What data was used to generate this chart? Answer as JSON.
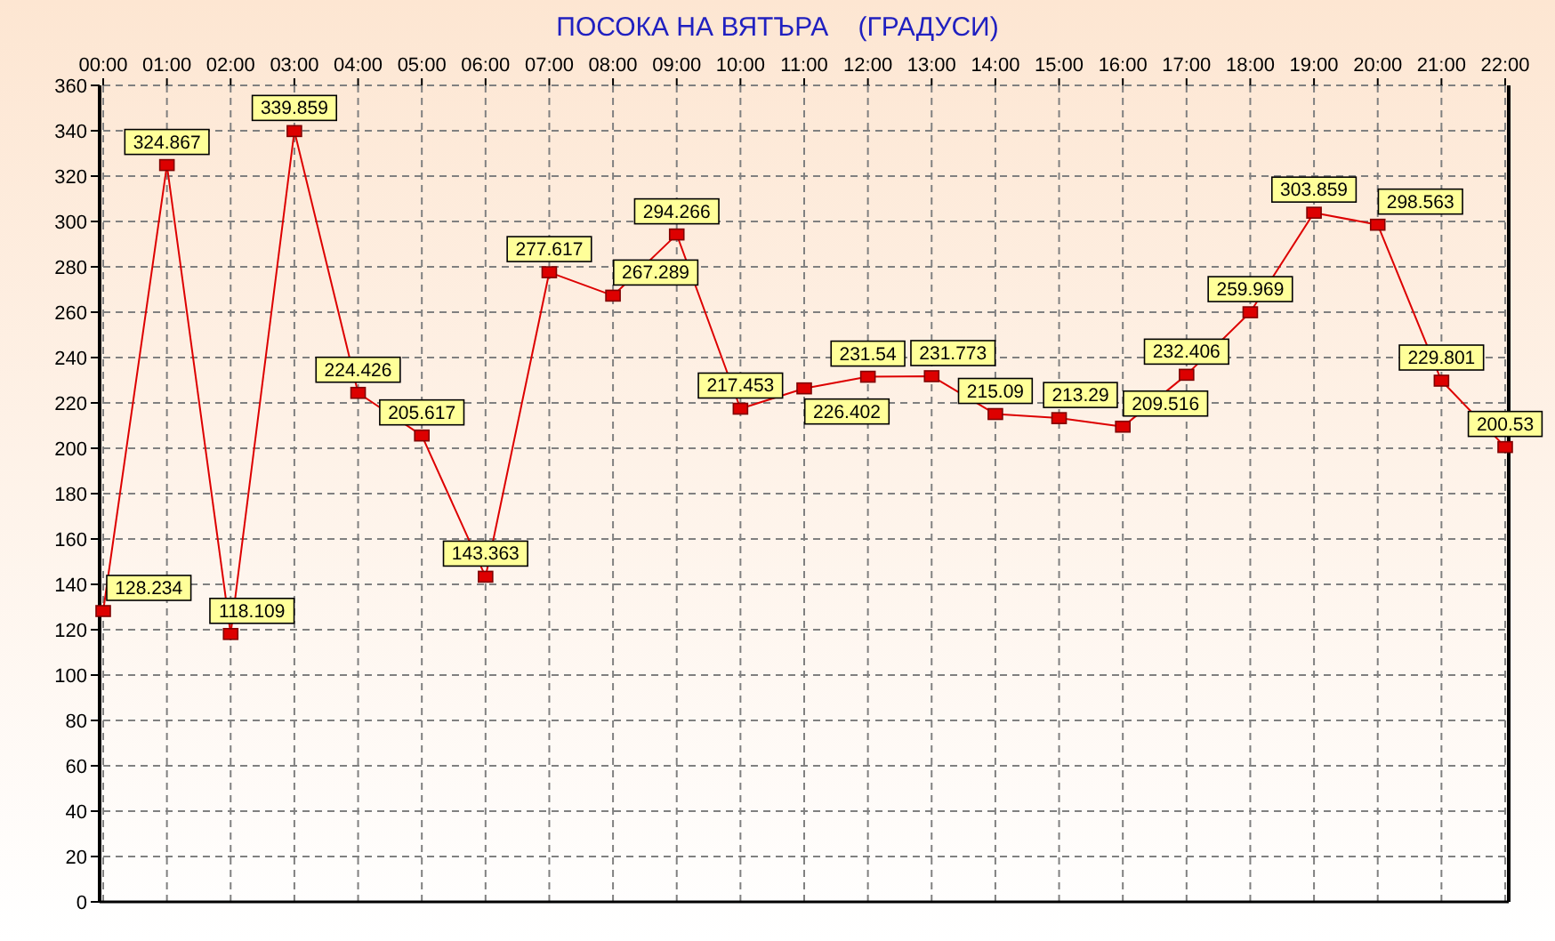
{
  "chart_data": {
    "type": "line",
    "title": "ПОСОКА НА ВЯТЪРА    (ГРАДУСИ)",
    "categories": [
      "00:00",
      "01:00",
      "02:00",
      "03:00",
      "04:00",
      "05:00",
      "06:00",
      "07:00",
      "08:00",
      "09:00",
      "10:00",
      "11:00",
      "12:00",
      "13:00",
      "14:00",
      "15:00",
      "16:00",
      "17:00",
      "18:00",
      "19:00",
      "20:00",
      "21:00",
      "22:00"
    ],
    "series": [
      {
        "color": "#dd0000",
        "values": [
          128.234,
          324.867,
          118.109,
          339.859,
          224.426,
          205.617,
          143.363,
          277.617,
          267.289,
          294.266,
          217.453,
          226.402,
          231.54,
          231.773,
          215.09,
          213.29,
          209.516,
          232.406,
          259.969,
          303.859,
          298.563,
          229.801,
          200.53
        ],
        "value_labels": [
          "128.234",
          "324.867",
          "118.109",
          "339.859",
          "224.426",
          "205.617",
          "143.363",
          "277.617",
          "267.289",
          "294.266",
          "217.453",
          "226.402",
          "231.54",
          "231.773",
          "215.09",
          "213.29",
          "209.516",
          "232.406",
          "259.969",
          "303.859",
          "298.563",
          "229.801",
          "200.53"
        ]
      }
    ],
    "ylim": [
      0,
      360
    ],
    "yticks": [
      0,
      20,
      40,
      60,
      80,
      100,
      120,
      140,
      160,
      180,
      200,
      220,
      240,
      260,
      280,
      300,
      320,
      340,
      360
    ],
    "grid": true,
    "marker": "square",
    "line_style": "solid"
  }
}
